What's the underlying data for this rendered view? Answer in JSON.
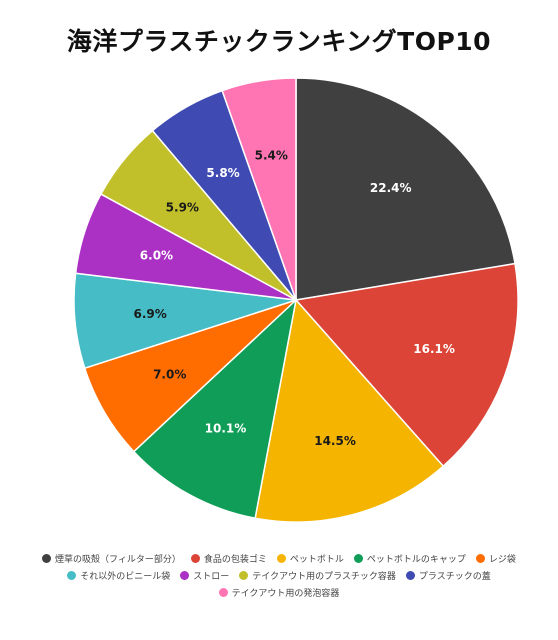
{
  "chart_data": {
    "type": "pie",
    "title": "海洋プラスチックランキングTOP10",
    "categories": [
      "煙草の吸殻（フィルター部分）",
      "食品の包装ゴミ",
      "ペットボトル",
      "ペットボトルのキャップ",
      "レジ袋",
      "それ以外のビニール袋",
      "ストロー",
      "テイクアウト用のプラスチック容器",
      "プラスチックの蓋",
      "テイクアウト用の発泡容器"
    ],
    "values": [
      22.4,
      16.1,
      14.5,
      10.1,
      7.0,
      6.9,
      6.0,
      5.9,
      5.8,
      5.4
    ],
    "labels": [
      "22.4%",
      "16.1%",
      "14.5%",
      "10.1%",
      "7.0%",
      "6.9%",
      "6.0%",
      "5.9%",
      "5.8%",
      "5.4%"
    ],
    "colors": [
      "#404040",
      "#db4437",
      "#f4b400",
      "#0f9d58",
      "#ff6d00",
      "#46bdc6",
      "#ab30c4",
      "#c2c02a",
      "#3f4bb3",
      "#ff75b3"
    ],
    "label_colors": [
      "#ffffff",
      "#ffffff",
      "#1a1a1a",
      "#ffffff",
      "#1a1a1a",
      "#1a1a1a",
      "#ffffff",
      "#1a1a1a",
      "#ffffff",
      "#1a1a1a"
    ],
    "legend_placement": "bottom",
    "start_angle": "12 o'clock",
    "direction": "clockwise"
  }
}
